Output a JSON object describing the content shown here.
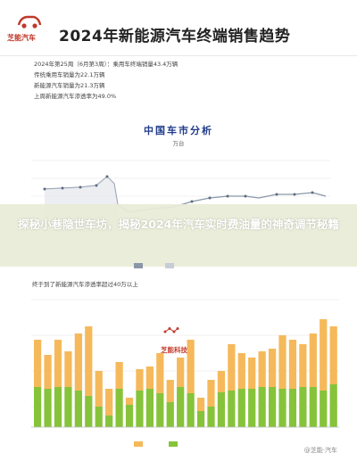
{
  "header": {
    "brand": "芝能汽车",
    "title": "2024年新能源汽车终端销售趋势"
  },
  "stats": {
    "line1": "2024年第25周（6月第3周）：乘用车终端销量43.4万辆",
    "line2": "传统乘用车销量为22.1万辆",
    "line3": "新能源汽车销量为21.3万辆",
    "line4": "上周新能源汽车渗透率为49.0%"
  },
  "top_chart": {
    "title": "中国车市分析",
    "unit": "万台"
  },
  "banner": {
    "text": "探秘小巷隐世车坊，揭秘2024年汽车实时费油量的神奇调节秘籍"
  },
  "bottom_chart": {
    "caption": "终于到了新能源汽车渗透率超过40万以上"
  },
  "watermark": {
    "logo_text": "芝能科技"
  },
  "footer": {
    "watermark": "@芝能·汽车"
  },
  "colors": {
    "accent_red": "#c0392b",
    "line": "#8a96a8",
    "bar_orange": "#f5b95b",
    "bar_green": "#86c33a"
  },
  "icons": {
    "brand": "car-logo-icon",
    "watermark": "chain-logo-icon"
  }
}
